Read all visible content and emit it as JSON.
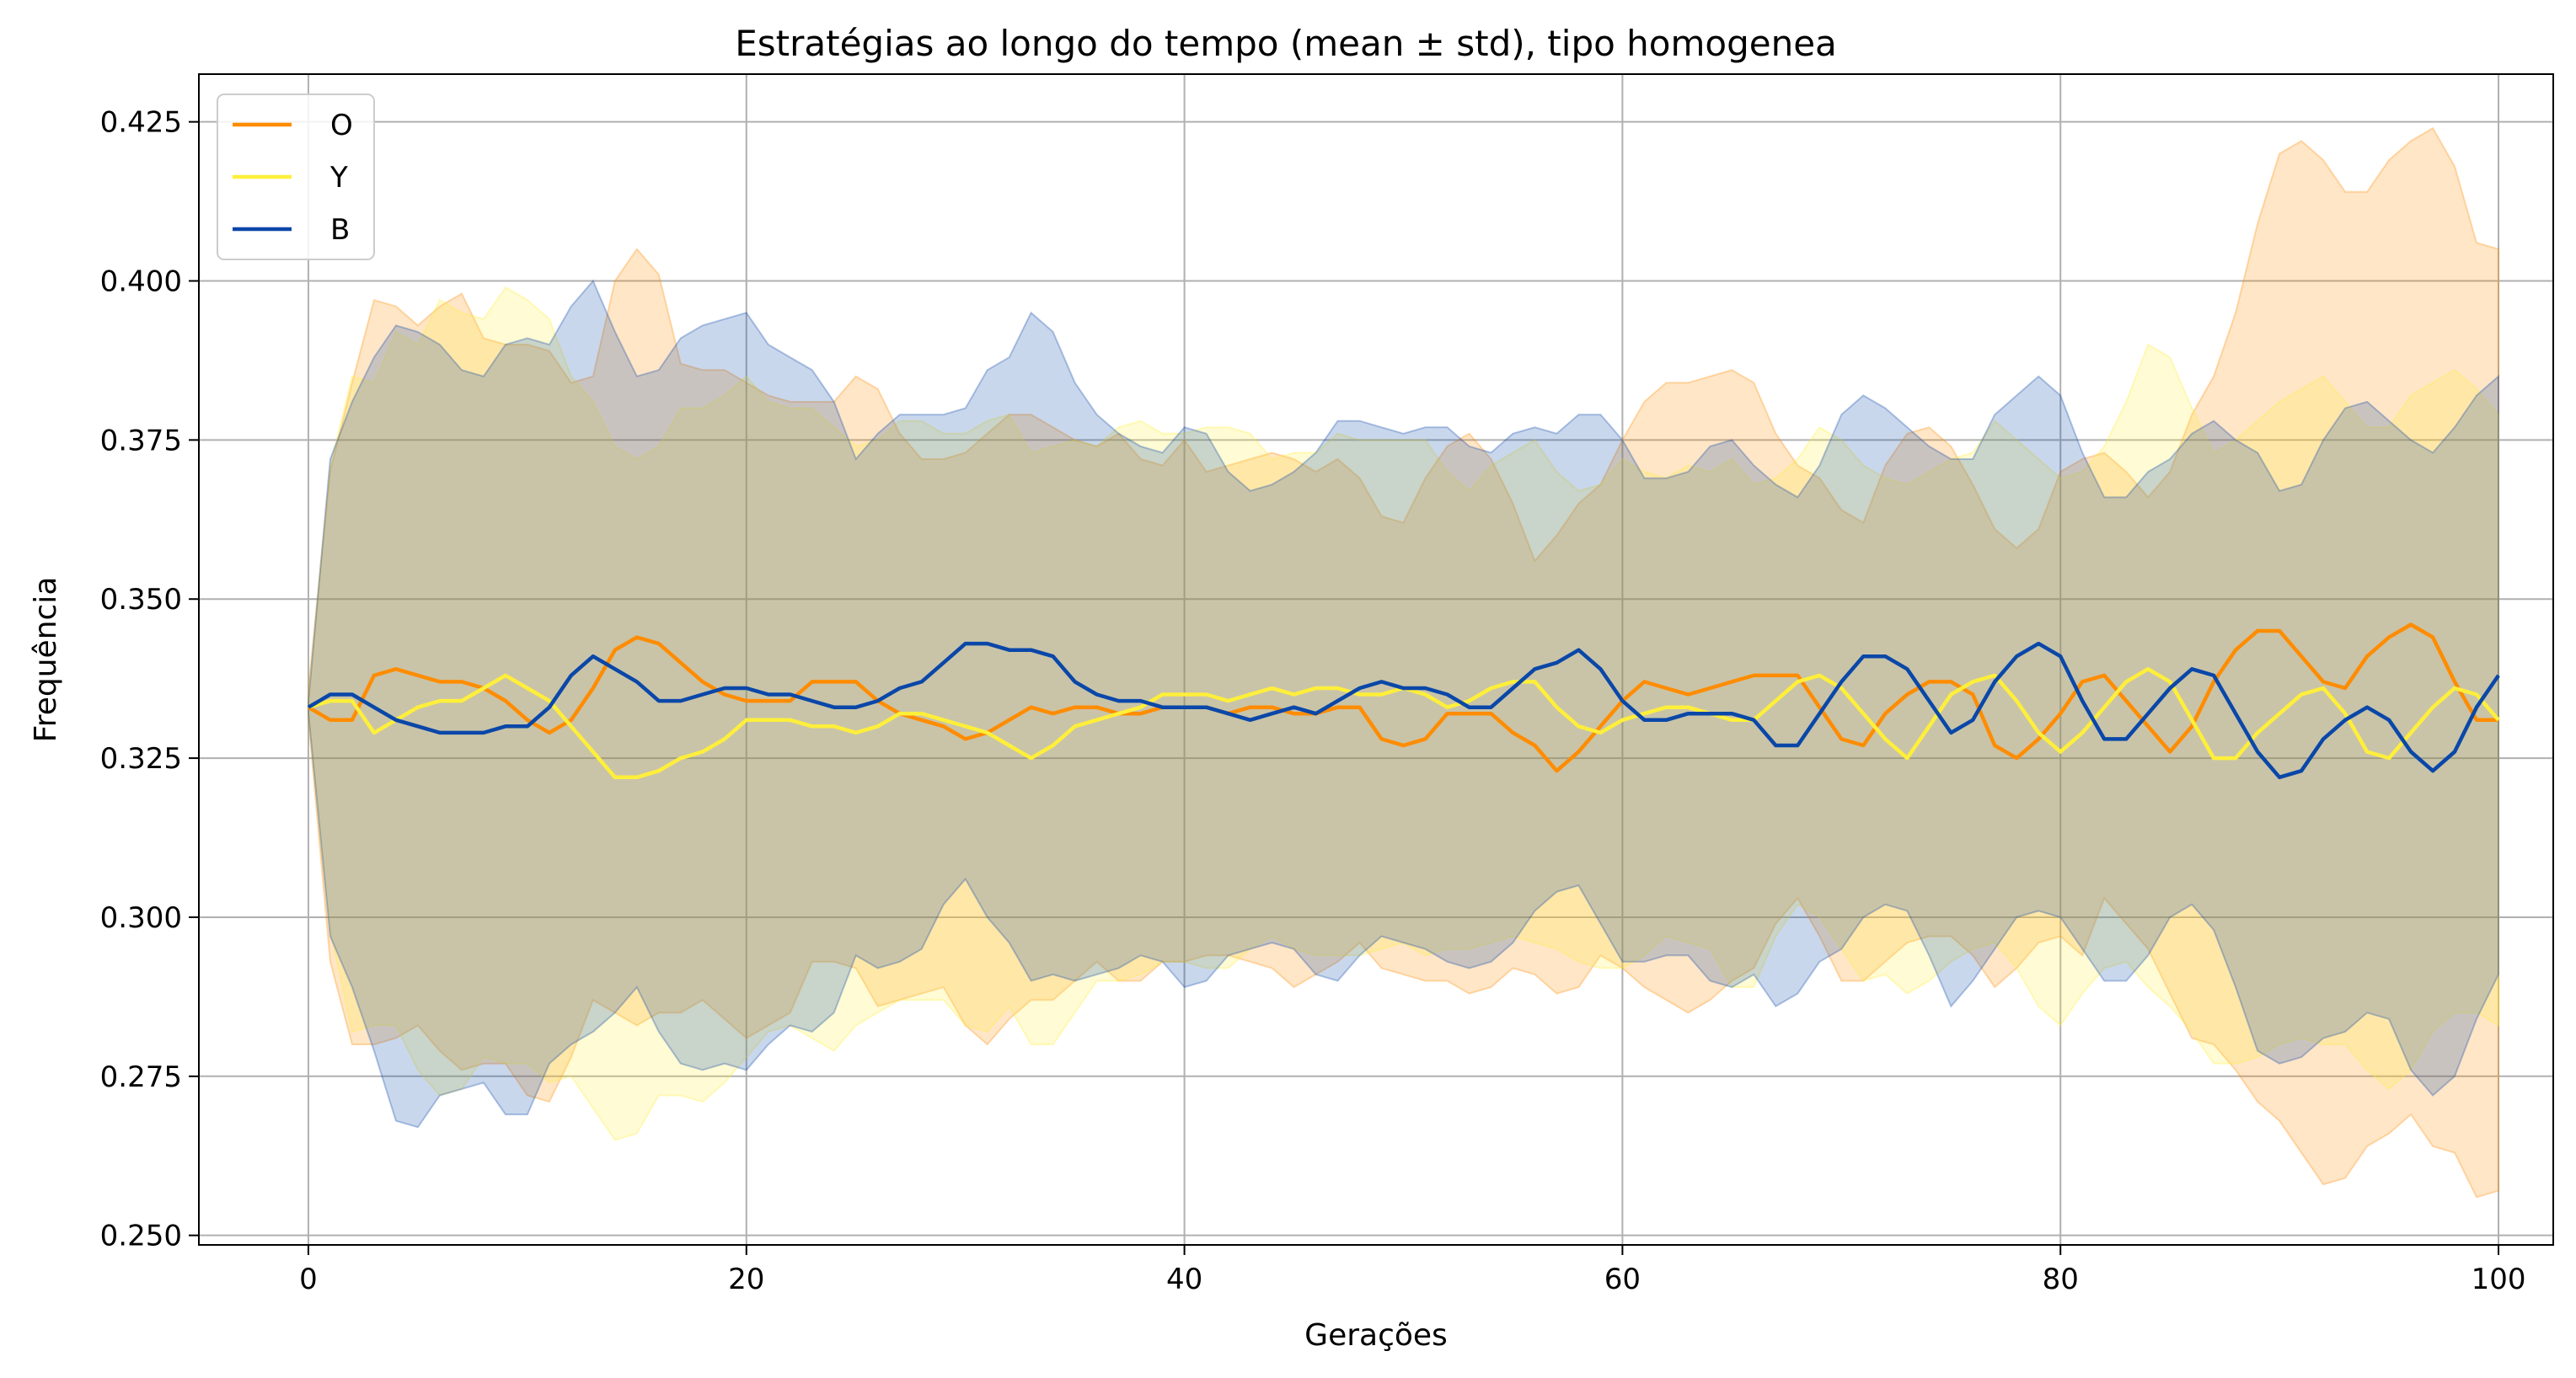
{
  "chart_data": {
    "type": "line",
    "title": "Estratégias ao longo do tempo (mean ± std), tipo homogenea",
    "xlabel": "Gerações",
    "ylabel": "Frequência",
    "xlim": [
      -5,
      102.5
    ],
    "ylim": [
      0.2485,
      0.4325
    ],
    "xticks": [
      0,
      20,
      40,
      60,
      80,
      100
    ],
    "yticks": [
      0.25,
      0.275,
      0.3,
      0.325,
      0.35,
      0.375,
      0.4,
      0.425
    ],
    "grid": true,
    "legend": "upper-left",
    "x_start": 0,
    "x_step": 1,
    "series": [
      {
        "name": "O",
        "color": "#ff8c00",
        "mean": [
          0.333,
          0.331,
          0.331,
          0.338,
          0.339,
          0.338,
          0.337,
          0.337,
          0.336,
          0.334,
          0.331,
          0.329,
          0.331,
          0.336,
          0.342,
          0.344,
          0.343,
          0.34,
          0.337,
          0.335,
          0.334,
          0.334,
          0.334,
          0.337,
          0.337,
          0.337,
          0.334,
          0.332,
          0.331,
          0.33,
          0.328,
          0.329,
          0.331,
          0.333,
          0.332,
          0.333,
          0.333,
          0.332,
          0.332,
          0.333,
          0.333,
          0.333,
          0.332,
          0.333,
          0.333,
          0.332,
          0.332,
          0.333,
          0.333,
          0.328,
          0.327,
          0.328,
          0.332,
          0.332,
          0.332,
          0.329,
          0.327,
          0.323,
          0.326,
          0.33,
          0.334,
          0.337,
          0.336,
          0.335,
          0.336,
          0.337,
          0.338,
          0.338,
          0.338,
          0.333,
          0.328,
          0.327,
          0.332,
          0.335,
          0.337,
          0.337,
          0.335,
          0.327,
          0.325,
          0.328,
          0.332,
          0.337,
          0.338,
          0.334,
          0.33,
          0.326,
          0.33,
          0.337,
          0.342,
          0.345,
          0.345,
          0.341,
          0.337,
          0.336,
          0.341,
          0.344,
          0.346,
          0.344,
          0.337,
          0.331,
          0.331
        ],
        "upper": [
          0.336,
          0.37,
          0.384,
          0.397,
          0.396,
          0.393,
          0.396,
          0.398,
          0.391,
          0.39,
          0.39,
          0.389,
          0.384,
          0.385,
          0.4,
          0.405,
          0.401,
          0.387,
          0.386,
          0.386,
          0.384,
          0.382,
          0.381,
          0.381,
          0.381,
          0.385,
          0.383,
          0.376,
          0.372,
          0.372,
          0.373,
          0.376,
          0.379,
          0.379,
          0.377,
          0.375,
          0.374,
          0.376,
          0.372,
          0.371,
          0.375,
          0.37,
          0.371,
          0.372,
          0.373,
          0.372,
          0.37,
          0.372,
          0.369,
          0.363,
          0.362,
          0.369,
          0.374,
          0.376,
          0.372,
          0.365,
          0.356,
          0.36,
          0.365,
          0.368,
          0.375,
          0.381,
          0.384,
          0.384,
          0.385,
          0.386,
          0.384,
          0.376,
          0.371,
          0.369,
          0.364,
          0.362,
          0.371,
          0.376,
          0.377,
          0.374,
          0.368,
          0.361,
          0.358,
          0.361,
          0.37,
          0.372,
          0.373,
          0.37,
          0.366,
          0.37,
          0.379,
          0.385,
          0.395,
          0.409,
          0.42,
          0.422,
          0.419,
          0.414,
          0.414,
          0.419,
          0.422,
          0.424,
          0.418,
          0.406,
          0.405
        ],
        "lower": [
          0.331,
          0.293,
          0.28,
          0.28,
          0.281,
          0.283,
          0.279,
          0.276,
          0.277,
          0.277,
          0.272,
          0.271,
          0.278,
          0.287,
          0.285,
          0.283,
          0.285,
          0.285,
          0.287,
          0.284,
          0.281,
          0.283,
          0.285,
          0.293,
          0.293,
          0.292,
          0.286,
          0.287,
          0.288,
          0.289,
          0.283,
          0.28,
          0.284,
          0.287,
          0.287,
          0.29,
          0.293,
          0.29,
          0.29,
          0.293,
          0.293,
          0.294,
          0.294,
          0.293,
          0.292,
          0.289,
          0.291,
          0.293,
          0.296,
          0.292,
          0.291,
          0.29,
          0.29,
          0.288,
          0.289,
          0.292,
          0.291,
          0.288,
          0.289,
          0.294,
          0.292,
          0.289,
          0.287,
          0.285,
          0.287,
          0.29,
          0.292,
          0.299,
          0.303,
          0.297,
          0.29,
          0.29,
          0.293,
          0.296,
          0.297,
          0.297,
          0.294,
          0.289,
          0.292,
          0.296,
          0.297,
          0.294,
          0.303,
          0.299,
          0.295,
          0.288,
          0.281,
          0.28,
          0.276,
          0.271,
          0.268,
          0.263,
          0.258,
          0.259,
          0.264,
          0.266,
          0.269,
          0.264,
          0.263,
          0.256,
          0.257
        ]
      },
      {
        "name": "Y",
        "color": "#ffef3a",
        "mean": [
          0.333,
          0.334,
          0.334,
          0.329,
          0.331,
          0.333,
          0.334,
          0.334,
          0.336,
          0.338,
          0.336,
          0.334,
          0.33,
          0.326,
          0.322,
          0.322,
          0.323,
          0.325,
          0.326,
          0.328,
          0.331,
          0.331,
          0.331,
          0.33,
          0.33,
          0.329,
          0.33,
          0.332,
          0.332,
          0.331,
          0.33,
          0.329,
          0.327,
          0.325,
          0.327,
          0.33,
          0.331,
          0.332,
          0.333,
          0.335,
          0.335,
          0.335,
          0.334,
          0.335,
          0.336,
          0.335,
          0.336,
          0.336,
          0.335,
          0.335,
          0.336,
          0.335,
          0.333,
          0.334,
          0.336,
          0.337,
          0.337,
          0.333,
          0.33,
          0.329,
          0.331,
          0.332,
          0.333,
          0.333,
          0.332,
          0.331,
          0.331,
          0.334,
          0.337,
          0.338,
          0.336,
          0.332,
          0.328,
          0.325,
          0.33,
          0.335,
          0.337,
          0.338,
          0.334,
          0.329,
          0.326,
          0.329,
          0.333,
          0.337,
          0.339,
          0.337,
          0.331,
          0.325,
          0.325,
          0.329,
          0.332,
          0.335,
          0.336,
          0.332,
          0.326,
          0.325,
          0.329,
          0.333,
          0.336,
          0.335,
          0.331
        ],
        "upper": [
          0.334,
          0.371,
          0.385,
          0.384,
          0.392,
          0.39,
          0.397,
          0.395,
          0.394,
          0.399,
          0.397,
          0.394,
          0.385,
          0.381,
          0.374,
          0.372,
          0.374,
          0.38,
          0.38,
          0.382,
          0.385,
          0.381,
          0.38,
          0.38,
          0.377,
          0.374,
          0.375,
          0.378,
          0.378,
          0.376,
          0.376,
          0.378,
          0.379,
          0.373,
          0.374,
          0.375,
          0.374,
          0.377,
          0.378,
          0.376,
          0.376,
          0.377,
          0.377,
          0.376,
          0.372,
          0.373,
          0.373,
          0.376,
          0.375,
          0.375,
          0.375,
          0.375,
          0.37,
          0.367,
          0.371,
          0.373,
          0.375,
          0.37,
          0.367,
          0.368,
          0.372,
          0.37,
          0.369,
          0.371,
          0.37,
          0.372,
          0.368,
          0.369,
          0.372,
          0.377,
          0.375,
          0.371,
          0.369,
          0.368,
          0.37,
          0.372,
          0.373,
          0.378,
          0.375,
          0.372,
          0.369,
          0.37,
          0.374,
          0.381,
          0.39,
          0.388,
          0.38,
          0.373,
          0.375,
          0.378,
          0.381,
          0.383,
          0.385,
          0.381,
          0.377,
          0.377,
          0.382,
          0.384,
          0.386,
          0.383,
          0.379
        ],
        "lower": [
          0.332,
          0.298,
          0.282,
          0.283,
          0.283,
          0.276,
          0.272,
          0.273,
          0.278,
          0.277,
          0.277,
          0.274,
          0.275,
          0.27,
          0.265,
          0.266,
          0.272,
          0.272,
          0.271,
          0.274,
          0.278,
          0.282,
          0.283,
          0.281,
          0.279,
          0.283,
          0.285,
          0.287,
          0.287,
          0.287,
          0.283,
          0.282,
          0.286,
          0.28,
          0.28,
          0.285,
          0.29,
          0.29,
          0.291,
          0.293,
          0.293,
          0.292,
          0.292,
          0.295,
          0.297,
          0.295,
          0.294,
          0.294,
          0.294,
          0.295,
          0.296,
          0.294,
          0.295,
          0.295,
          0.296,
          0.297,
          0.296,
          0.295,
          0.293,
          0.292,
          0.292,
          0.294,
          0.297,
          0.296,
          0.295,
          0.289,
          0.289,
          0.297,
          0.302,
          0.3,
          0.295,
          0.29,
          0.291,
          0.288,
          0.29,
          0.293,
          0.295,
          0.296,
          0.292,
          0.286,
          0.283,
          0.288,
          0.292,
          0.293,
          0.289,
          0.286,
          0.282,
          0.277,
          0.277,
          0.278,
          0.28,
          0.281,
          0.28,
          0.28,
          0.276,
          0.273,
          0.276,
          0.282,
          0.285,
          0.285,
          0.283
        ]
      },
      {
        "name": "B",
        "color": "#0a47a8",
        "mean": [
          0.333,
          0.335,
          0.335,
          0.333,
          0.331,
          0.33,
          0.329,
          0.329,
          0.329,
          0.33,
          0.33,
          0.333,
          0.338,
          0.341,
          0.339,
          0.337,
          0.334,
          0.334,
          0.335,
          0.336,
          0.336,
          0.335,
          0.335,
          0.334,
          0.333,
          0.333,
          0.334,
          0.336,
          0.337,
          0.34,
          0.343,
          0.343,
          0.342,
          0.342,
          0.341,
          0.337,
          0.335,
          0.334,
          0.334,
          0.333,
          0.333,
          0.333,
          0.332,
          0.331,
          0.332,
          0.333,
          0.332,
          0.334,
          0.336,
          0.337,
          0.336,
          0.336,
          0.335,
          0.333,
          0.333,
          0.336,
          0.339,
          0.34,
          0.342,
          0.339,
          0.334,
          0.331,
          0.331,
          0.332,
          0.332,
          0.332,
          0.331,
          0.327,
          0.327,
          0.332,
          0.337,
          0.341,
          0.341,
          0.339,
          0.334,
          0.329,
          0.331,
          0.337,
          0.341,
          0.343,
          0.341,
          0.334,
          0.328,
          0.328,
          0.332,
          0.336,
          0.339,
          0.338,
          0.332,
          0.326,
          0.322,
          0.323,
          0.328,
          0.331,
          0.333,
          0.331,
          0.326,
          0.323,
          0.326,
          0.333,
          0.338
        ],
        "upper": [
          0.334,
          0.372,
          0.381,
          0.388,
          0.393,
          0.392,
          0.39,
          0.386,
          0.385,
          0.39,
          0.391,
          0.39,
          0.396,
          0.4,
          0.392,
          0.385,
          0.386,
          0.391,
          0.393,
          0.394,
          0.395,
          0.39,
          0.388,
          0.386,
          0.381,
          0.372,
          0.376,
          0.379,
          0.379,
          0.379,
          0.38,
          0.386,
          0.388,
          0.395,
          0.392,
          0.384,
          0.379,
          0.376,
          0.374,
          0.373,
          0.377,
          0.376,
          0.37,
          0.367,
          0.368,
          0.37,
          0.373,
          0.378,
          0.378,
          0.377,
          0.376,
          0.377,
          0.377,
          0.374,
          0.373,
          0.376,
          0.377,
          0.376,
          0.379,
          0.379,
          0.375,
          0.369,
          0.369,
          0.37,
          0.374,
          0.375,
          0.371,
          0.368,
          0.366,
          0.371,
          0.379,
          0.382,
          0.38,
          0.377,
          0.374,
          0.372,
          0.372,
          0.379,
          0.382,
          0.385,
          0.382,
          0.373,
          0.366,
          0.366,
          0.37,
          0.372,
          0.376,
          0.378,
          0.375,
          0.373,
          0.367,
          0.368,
          0.375,
          0.38,
          0.381,
          0.378,
          0.375,
          0.373,
          0.377,
          0.382,
          0.385
        ],
        "lower": [
          0.332,
          0.297,
          0.289,
          0.279,
          0.268,
          0.267,
          0.272,
          0.273,
          0.274,
          0.269,
          0.269,
          0.277,
          0.28,
          0.282,
          0.285,
          0.289,
          0.282,
          0.277,
          0.276,
          0.277,
          0.276,
          0.28,
          0.283,
          0.282,
          0.285,
          0.294,
          0.292,
          0.293,
          0.295,
          0.302,
          0.306,
          0.3,
          0.296,
          0.29,
          0.291,
          0.29,
          0.291,
          0.292,
          0.294,
          0.293,
          0.289,
          0.29,
          0.294,
          0.295,
          0.296,
          0.295,
          0.291,
          0.29,
          0.294,
          0.297,
          0.296,
          0.295,
          0.293,
          0.292,
          0.293,
          0.296,
          0.301,
          0.304,
          0.305,
          0.299,
          0.293,
          0.293,
          0.294,
          0.294,
          0.29,
          0.289,
          0.291,
          0.286,
          0.288,
          0.293,
          0.295,
          0.3,
          0.302,
          0.301,
          0.294,
          0.286,
          0.29,
          0.295,
          0.3,
          0.301,
          0.3,
          0.295,
          0.29,
          0.29,
          0.294,
          0.3,
          0.302,
          0.298,
          0.289,
          0.279,
          0.277,
          0.278,
          0.281,
          0.282,
          0.285,
          0.284,
          0.276,
          0.272,
          0.275,
          0.284,
          0.291
        ]
      }
    ]
  }
}
